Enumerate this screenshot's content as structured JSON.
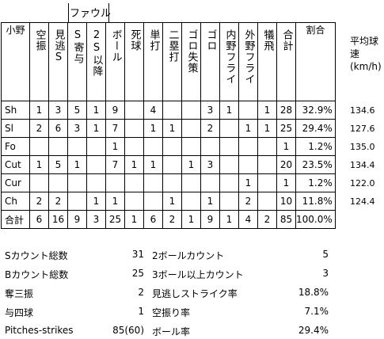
{
  "header_group": "ファウル",
  "pitcher": "小野",
  "columns": [
    "空振",
    "見逃S",
    "S寄与",
    "2S以降",
    "ボール",
    "死球",
    "単打",
    "二塁打",
    "ゴロ失策",
    "ゴロ",
    "内野フライ",
    "外野フライ",
    "犠飛",
    "合計",
    "割合"
  ],
  "avg_speed_label": "平均球速(km/h)",
  "rows": [
    {
      "label": "Sh",
      "values": [
        "1",
        "3",
        "5",
        "1",
        "9",
        "",
        "4",
        "",
        "",
        "3",
        "1",
        "",
        "1",
        "28",
        "32.9%"
      ],
      "speed": "134.6"
    },
    {
      "label": "Sl",
      "values": [
        "2",
        "6",
        "3",
        "1",
        "7",
        "",
        "1",
        "1",
        "",
        "2",
        "",
        "1",
        "1",
        "25",
        "29.4%"
      ],
      "speed": "127.6"
    },
    {
      "label": "Fo",
      "values": [
        "",
        "",
        "",
        "",
        "1",
        "",
        "",
        "",
        "",
        "",
        "",
        "",
        "",
        "1",
        "1.2%"
      ],
      "speed": "135.0"
    },
    {
      "label": "Cut",
      "values": [
        "1",
        "5",
        "1",
        "",
        "7",
        "1",
        "1",
        "",
        "1",
        "3",
        "",
        "",
        "",
        "20",
        "23.5%"
      ],
      "speed": "134.4"
    },
    {
      "label": "Cur",
      "values": [
        "",
        "",
        "",
        "",
        "",
        "",
        "",
        "",
        "",
        "",
        "",
        "1",
        "",
        "1",
        "1.2%"
      ],
      "speed": "122.0"
    },
    {
      "label": "Ch",
      "values": [
        "2",
        "2",
        "",
        "1",
        "1",
        "",
        "",
        "1",
        "",
        "1",
        "",
        "2",
        "",
        "10",
        "11.8%"
      ],
      "speed": "124.4"
    },
    {
      "label": "合計",
      "values": [
        "6",
        "16",
        "9",
        "3",
        "25",
        "1",
        "6",
        "2",
        "1",
        "9",
        "1",
        "4",
        "2",
        "85",
        "100.0%"
      ],
      "speed": ""
    }
  ],
  "summary_left": [
    {
      "label": "Sカウント総数",
      "value": "31"
    },
    {
      "label": "Bカウント総数",
      "value": "25"
    },
    {
      "label": "奪三振",
      "value": "2"
    },
    {
      "label": "与四球",
      "value": "1"
    },
    {
      "label": "Pitches-strikes",
      "value": "85(60)"
    }
  ],
  "summary_right": [
    {
      "label": "2ボールカウント",
      "value": "5"
    },
    {
      "label": "3ボール以上カウント",
      "value": "3"
    },
    {
      "label": "見逃しストライク率",
      "value": "18.8%"
    },
    {
      "label": "空振り率",
      "value": "7.1%"
    },
    {
      "label": "ボール率",
      "value": "29.4%"
    }
  ]
}
